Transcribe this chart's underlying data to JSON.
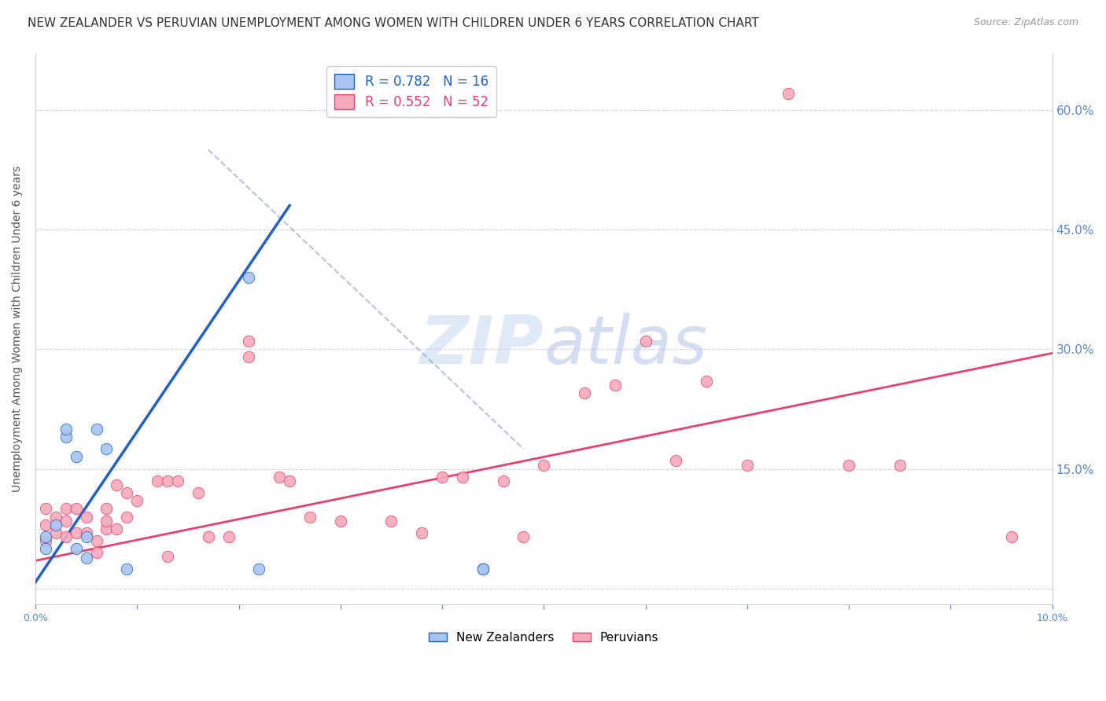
{
  "title": "NEW ZEALANDER VS PERUVIAN UNEMPLOYMENT AMONG WOMEN WITH CHILDREN UNDER 6 YEARS CORRELATION CHART",
  "source": "Source: ZipAtlas.com",
  "ylabel": "Unemployment Among Women with Children Under 6 years",
  "xlim": [
    0,
    0.1
  ],
  "ylim": [
    -0.02,
    0.67
  ],
  "xticks": [
    0.0,
    0.01,
    0.02,
    0.03,
    0.04,
    0.05,
    0.06,
    0.07,
    0.08,
    0.09,
    0.1
  ],
  "xtick_labels": [
    "0.0%",
    "",
    "",
    "",
    "",
    "",
    "",
    "",
    "",
    "",
    "10.0%"
  ],
  "yticks": [
    0.0,
    0.15,
    0.3,
    0.45,
    0.6
  ],
  "ytick_labels_right": [
    "",
    "15.0%",
    "30.0%",
    "45.0%",
    "60.0%"
  ],
  "nz_R": 0.782,
  "nz_N": 16,
  "peru_R": 0.552,
  "peru_N": 52,
  "nz_color": "#a8c4f0",
  "peru_color": "#f5aabb",
  "nz_line_color": "#2060c8",
  "peru_line_color": "#e84070",
  "background_color": "#ffffff",
  "grid_color": "#ccccdd",
  "legend_label_nz": "New Zealanders",
  "legend_label_peru": "Peruvians",
  "nz_x": [
    0.001,
    0.001,
    0.002,
    0.003,
    0.003,
    0.004,
    0.004,
    0.005,
    0.005,
    0.006,
    0.007,
    0.009,
    0.021,
    0.022,
    0.044,
    0.044
  ],
  "nz_y": [
    0.05,
    0.065,
    0.08,
    0.19,
    0.2,
    0.05,
    0.165,
    0.065,
    0.038,
    0.2,
    0.175,
    0.025,
    0.39,
    0.025,
    0.025,
    0.025
  ],
  "peru_x": [
    0.001,
    0.001,
    0.001,
    0.002,
    0.002,
    0.003,
    0.003,
    0.003,
    0.004,
    0.004,
    0.005,
    0.005,
    0.006,
    0.006,
    0.007,
    0.007,
    0.007,
    0.008,
    0.008,
    0.009,
    0.009,
    0.01,
    0.012,
    0.013,
    0.013,
    0.014,
    0.016,
    0.017,
    0.019,
    0.021,
    0.021,
    0.024,
    0.025,
    0.027,
    0.03,
    0.035,
    0.038,
    0.04,
    0.042,
    0.046,
    0.048,
    0.05,
    0.054,
    0.057,
    0.06,
    0.063,
    0.066,
    0.07,
    0.074,
    0.08,
    0.085,
    0.096
  ],
  "peru_y": [
    0.06,
    0.08,
    0.1,
    0.07,
    0.09,
    0.065,
    0.085,
    0.1,
    0.07,
    0.1,
    0.07,
    0.09,
    0.06,
    0.045,
    0.075,
    0.085,
    0.1,
    0.075,
    0.13,
    0.09,
    0.12,
    0.11,
    0.135,
    0.135,
    0.04,
    0.135,
    0.12,
    0.065,
    0.065,
    0.29,
    0.31,
    0.14,
    0.135,
    0.09,
    0.085,
    0.085,
    0.07,
    0.14,
    0.14,
    0.135,
    0.065,
    0.155,
    0.245,
    0.255,
    0.31,
    0.16,
    0.26,
    0.155,
    0.62,
    0.155,
    0.155,
    0.065
  ],
  "nz_trendline_x": [
    0.0,
    0.025
  ],
  "nz_trendline_y": [
    0.008,
    0.48
  ],
  "peru_trendline_x": [
    0.0,
    0.1
  ],
  "peru_trendline_y": [
    0.035,
    0.295
  ],
  "dashed_line_x": [
    0.017,
    0.048
  ],
  "dashed_line_y": [
    0.55,
    0.175
  ],
  "marker_size": 110,
  "title_fontsize": 11,
  "axis_label_fontsize": 10,
  "tick_fontsize": 9,
  "legend_fontsize": 11
}
